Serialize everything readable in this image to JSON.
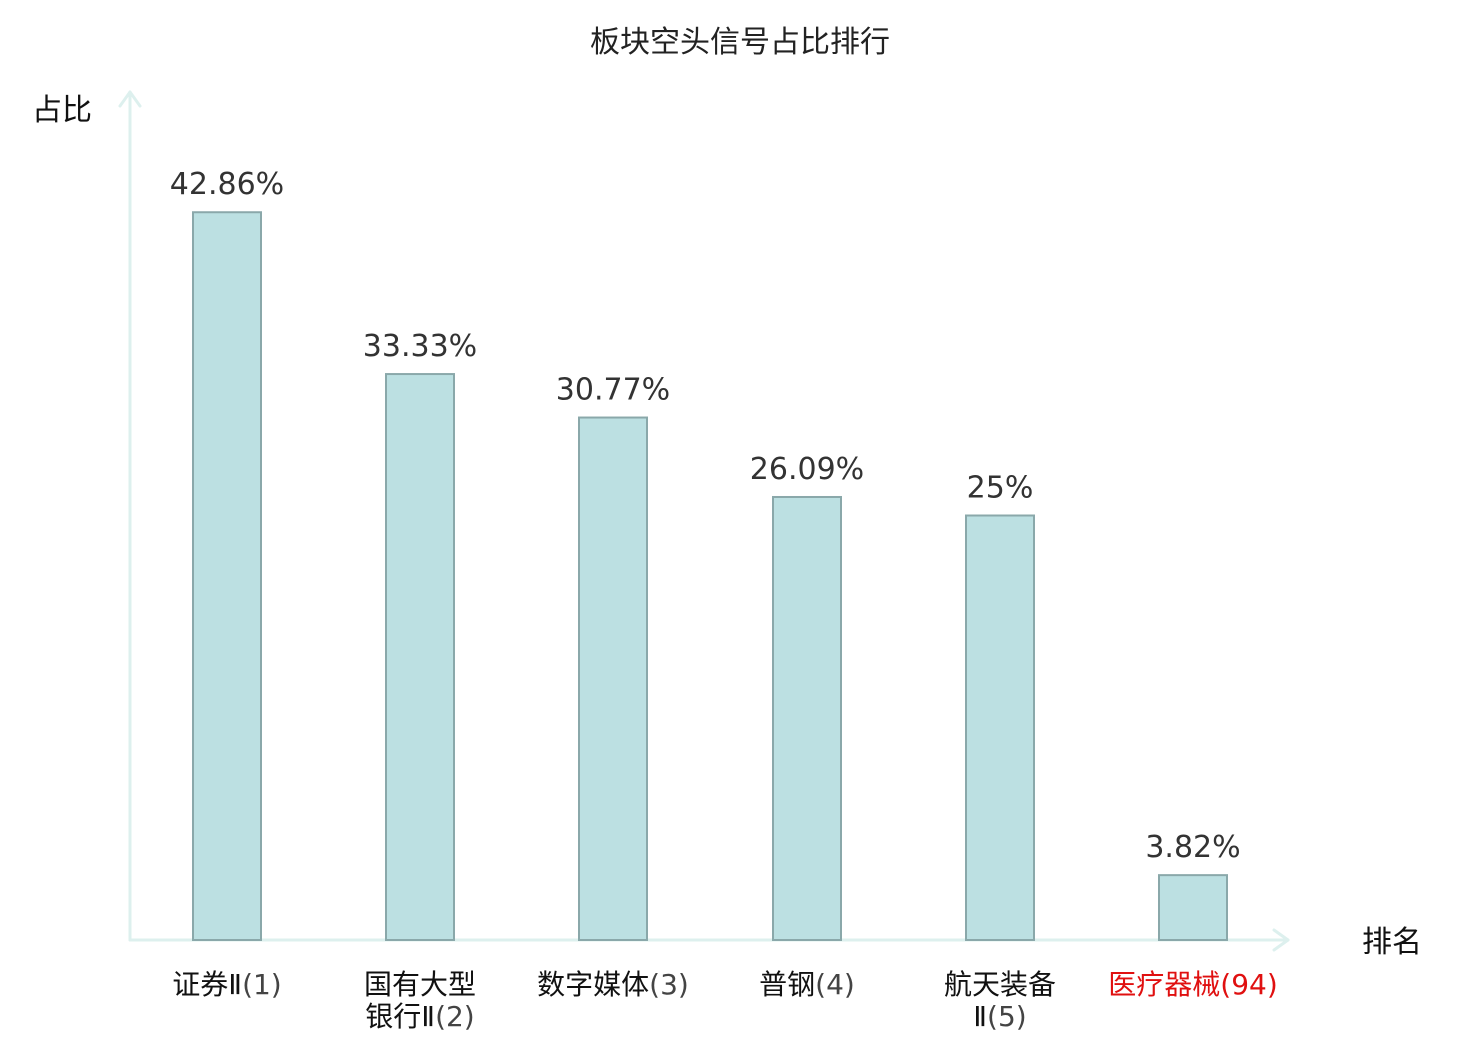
{
  "chart_data": {
    "type": "bar",
    "title": "板块空头信号占比排行",
    "ylabel": "占比",
    "xlabel": "排名",
    "ylim": [
      0,
      50
    ],
    "categories": [
      {
        "name_lines": [
          "证券Ⅱ"
        ],
        "rank": "(1)",
        "highlight": false
      },
      {
        "name_lines": [
          "国有大型",
          "银行Ⅱ"
        ],
        "rank": "(2)",
        "highlight": false
      },
      {
        "name_lines": [
          "数字媒体"
        ],
        "rank": "(3)",
        "highlight": false
      },
      {
        "name_lines": [
          "普钢"
        ],
        "rank": "(4)",
        "highlight": false
      },
      {
        "name_lines": [
          "航天装备",
          "Ⅱ"
        ],
        "rank": "(5)",
        "highlight": false
      },
      {
        "name_lines": [
          "医疗器械"
        ],
        "rank": "(94)",
        "highlight": true
      }
    ],
    "values": [
      42.86,
      33.33,
      30.77,
      26.09,
      25,
      3.82
    ],
    "value_labels": [
      "42.86%",
      "33.33%",
      "30.77%",
      "26.09%",
      "25%",
      "3.82%"
    ],
    "grid": false,
    "colors": {
      "bar_fill": "#bce0e2",
      "bar_stroke": "#8aa8aa",
      "axis": "#ddf0ee",
      "highlight_text": "#e01010",
      "normal_text": "#111111",
      "rank_text": "#444444"
    }
  }
}
